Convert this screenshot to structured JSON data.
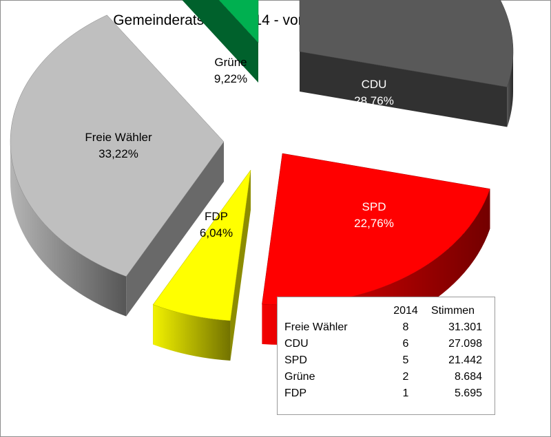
{
  "chart_data": {
    "type": "pie",
    "title": "Gemeinderatswahl 2014 - vorläufiges Endergebnis",
    "slices": [
      {
        "name": "CDU",
        "value": 28.76,
        "label": "28,76%",
        "color": "#595959"
      },
      {
        "name": "SPD",
        "value": 22.76,
        "label": "22,76%",
        "color": "#ff0000"
      },
      {
        "name": "FDP",
        "value": 6.04,
        "label": "6,04%",
        "color": "#ffff00"
      },
      {
        "name": "Freie Wähler",
        "value": 33.22,
        "label": "33,22%",
        "color": "#bfbfbf"
      },
      {
        "name": "Grüne",
        "value": 9.22,
        "label": "9,22%",
        "color": "#00b050"
      }
    ],
    "table": {
      "headers": [
        "",
        "2014",
        "Stimmen"
      ],
      "rows": [
        [
          "Freie Wähler",
          "8",
          "31.301"
        ],
        [
          "CDU",
          "6",
          "27.098"
        ],
        [
          "SPD",
          "5",
          "21.442"
        ],
        [
          "Grüne",
          "2",
          "8.684"
        ],
        [
          "FDP",
          "1",
          "5.695"
        ]
      ]
    }
  }
}
